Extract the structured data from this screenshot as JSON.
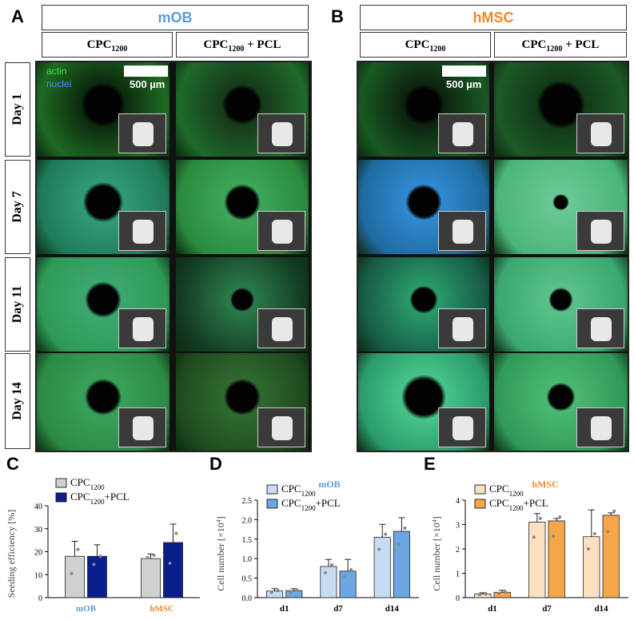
{
  "panels": {
    "A": {
      "letter": "A",
      "cell_type": "mOB",
      "cell_type_color": "#5b9bd5",
      "col1": "CPC",
      "col1_sub": "1200",
      "col2": "CPC",
      "col2_sub": "1200",
      "col2_tail": " + PCL",
      "scale_label": "500 µm",
      "channel_actin": "actin",
      "channel_nuclei": "nuclei"
    },
    "B": {
      "letter": "B",
      "cell_type": "hMSC",
      "cell_type_color": "#f08a24",
      "col1": "CPC",
      "col1_sub": "1200",
      "col2": "CPC",
      "col2_sub": "1200",
      "col2_tail": " + PCL",
      "scale_label": "500 µm"
    },
    "C_letter": "C",
    "D_letter": "D",
    "E_letter": "E"
  },
  "days": [
    "Day 1",
    "Day 7",
    "Day 11",
    "Day 14"
  ],
  "chart_data": [
    {
      "type": "bar",
      "id": "C",
      "title": "",
      "ylabel": "Seeding efficiency [%]",
      "ylim": [
        0,
        40
      ],
      "yticks": [
        0,
        10,
        20,
        30,
        40
      ],
      "categories": [
        "mOB",
        "hMSC"
      ],
      "category_colors": [
        "#5b9bd5",
        "#f08a24"
      ],
      "series": [
        {
          "name": "CPC",
          "name_sub": "1200",
          "color": "#d0d0d0",
          "values": [
            18,
            17
          ],
          "err": [
            6.5,
            2
          ],
          "points": [
            [
              10.5,
              21
            ],
            [
              17.5,
              18.5
            ]
          ]
        },
        {
          "name": "CPC",
          "name_sub": "1200",
          "name_tail": "+PCL",
          "color": "#0a1e8c",
          "values": [
            18,
            24
          ],
          "err": [
            5,
            8
          ],
          "points": [
            [
              14.5,
              18
            ],
            [
              15,
              28
            ]
          ]
        }
      ]
    },
    {
      "type": "bar",
      "id": "D",
      "title": "mOB",
      "title_color": "#5b9bd5",
      "ylabel": "Cell number",
      "ylabel_unit": "[×10",
      "ylabel_exp": "4",
      "ylabel_close": "]",
      "ylim": [
        0,
        2.5
      ],
      "yticks": [
        "0.0",
        "0.5",
        "1.0",
        "1.5",
        "2.0",
        "2.5"
      ],
      "categories": [
        "d1",
        "d7",
        "d14"
      ],
      "series": [
        {
          "name": "CPC",
          "name_sub": "1200",
          "color": "#c6dcf5",
          "values": [
            0.17,
            0.8,
            1.55
          ],
          "err": [
            0.06,
            0.18,
            0.33
          ]
        },
        {
          "name": "CPC",
          "name_sub": "1200",
          "name_tail": "+PCL",
          "color": "#6ba7e3",
          "values": [
            0.18,
            0.68,
            1.7
          ],
          "err": [
            0.05,
            0.3,
            0.35
          ]
        }
      ]
    },
    {
      "type": "bar",
      "id": "E",
      "title": "hMSC",
      "title_color": "#f08a24",
      "ylabel": "Cell number",
      "ylabel_unit": "[×10",
      "ylabel_exp": "4",
      "ylabel_close": "]",
      "ylim": [
        0,
        4
      ],
      "yticks": [
        "0",
        "1",
        "2",
        "3",
        "4"
      ],
      "categories": [
        "d1",
        "d7",
        "d14"
      ],
      "series": [
        {
          "name": "CPC",
          "name_sub": "1200",
          "color": "#fde0c2",
          "values": [
            0.15,
            3.1,
            2.5
          ],
          "err": [
            0.05,
            0.35,
            1.1
          ]
        },
        {
          "name": "CPC",
          "name_sub": "1200",
          "name_tail": "+PCL",
          "color": "#f5a54a",
          "values": [
            0.22,
            3.15,
            3.38
          ],
          "err": [
            0.08,
            0.1,
            0.1
          ]
        }
      ]
    }
  ]
}
